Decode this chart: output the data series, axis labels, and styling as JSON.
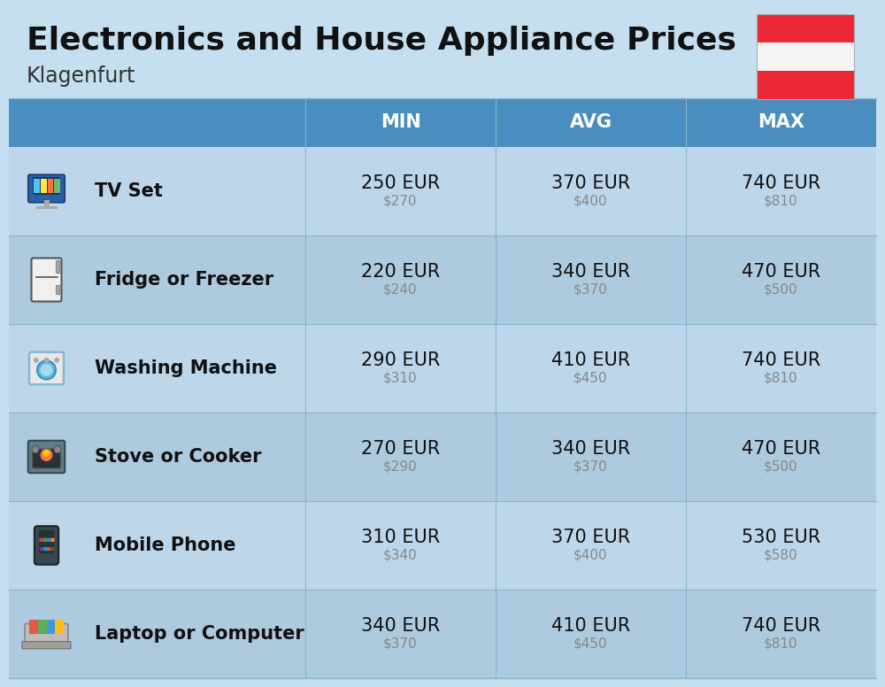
{
  "title": "Electronics and House Appliance Prices",
  "subtitle": "Klagenfurt",
  "bg_color": "#c5dff0",
  "header_bg": "#4a8dbf",
  "header_text_color": "#ffffff",
  "row_bg_even": "#bdd6ea",
  "row_bg_odd": "#aecadf",
  "divider_color": "#88b4d0",
  "col_headers": [
    "MIN",
    "AVG",
    "MAX"
  ],
  "items": [
    {
      "name": "TV Set",
      "min_eur": "250 EUR",
      "min_usd": "$270",
      "avg_eur": "370 EUR",
      "avg_usd": "$400",
      "max_eur": "740 EUR",
      "max_usd": "$810"
    },
    {
      "name": "Fridge or Freezer",
      "min_eur": "220 EUR",
      "min_usd": "$240",
      "avg_eur": "340 EUR",
      "avg_usd": "$370",
      "max_eur": "470 EUR",
      "max_usd": "$500"
    },
    {
      "name": "Washing Machine",
      "min_eur": "290 EUR",
      "min_usd": "$310",
      "avg_eur": "410 EUR",
      "avg_usd": "$450",
      "max_eur": "740 EUR",
      "max_usd": "$810"
    },
    {
      "name": "Stove or Cooker",
      "min_eur": "270 EUR",
      "min_usd": "$290",
      "avg_eur": "340 EUR",
      "avg_usd": "$370",
      "max_eur": "470 EUR",
      "max_usd": "$500"
    },
    {
      "name": "Mobile Phone",
      "min_eur": "310 EUR",
      "min_usd": "$340",
      "avg_eur": "370 EUR",
      "avg_usd": "$400",
      "max_eur": "530 EUR",
      "max_usd": "$580"
    },
    {
      "name": "Laptop or Computer",
      "min_eur": "340 EUR",
      "min_usd": "$370",
      "avg_eur": "410 EUR",
      "avg_usd": "$450",
      "max_eur": "740 EUR",
      "max_usd": "$810"
    }
  ],
  "flag_red": "#ED2939",
  "flag_white": "#f5f5f5",
  "title_fontsize": 26,
  "subtitle_fontsize": 17,
  "header_fontsize": 15,
  "item_name_fontsize": 15,
  "value_eur_fontsize": 15,
  "value_usd_fontsize": 11,
  "usd_color": "#888888",
  "text_color": "#111111"
}
